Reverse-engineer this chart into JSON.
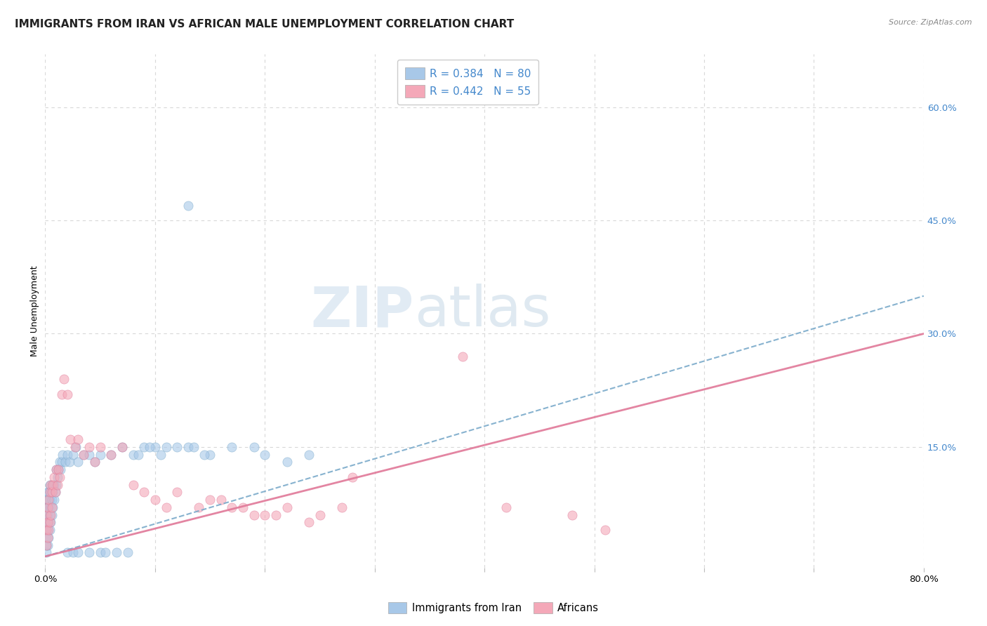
{
  "title": "IMMIGRANTS FROM IRAN VS AFRICAN MALE UNEMPLOYMENT CORRELATION CHART",
  "source": "Source: ZipAtlas.com",
  "ylabel": "Male Unemployment",
  "xlim": [
    0.0,
    0.8
  ],
  "ylim": [
    -0.01,
    0.67
  ],
  "xticks": [
    0.0,
    0.1,
    0.2,
    0.3,
    0.4,
    0.5,
    0.6,
    0.7,
    0.8
  ],
  "xticklabels": [
    "0.0%",
    "",
    "",
    "",
    "",
    "",
    "",
    "",
    "80.0%"
  ],
  "ytick_positions": [
    0.15,
    0.3,
    0.45,
    0.6
  ],
  "ytick_labels": [
    "15.0%",
    "30.0%",
    "45.0%",
    "60.0%"
  ],
  "watermark_zip": "ZIP",
  "watermark_atlas": "atlas",
  "legend_r1": "R = 0.384",
  "legend_n1": "N = 80",
  "legend_r2": "R = 0.442",
  "legend_n2": "N = 55",
  "series1_color": "#a8c8e8",
  "series2_color": "#f4a8b8",
  "series1_edge": "#7aaaca",
  "series2_edge": "#e07898",
  "trendline1_color": "#7aaaca",
  "trendline2_color": "#e07898",
  "background_color": "#ffffff",
  "grid_color": "#d8d8d8",
  "axis_label_color": "#4488cc",
  "stat_color": "#4488cc",
  "title_color": "#222222",
  "series1_x": [
    0.001,
    0.001,
    0.001,
    0.001,
    0.001,
    0.001,
    0.001,
    0.001,
    0.002,
    0.002,
    0.002,
    0.002,
    0.002,
    0.002,
    0.002,
    0.003,
    0.003,
    0.003,
    0.003,
    0.004,
    0.004,
    0.004,
    0.004,
    0.005,
    0.005,
    0.005,
    0.006,
    0.006,
    0.006,
    0.007,
    0.007,
    0.008,
    0.008,
    0.009,
    0.01,
    0.01,
    0.011,
    0.012,
    0.013,
    0.014,
    0.015,
    0.016,
    0.018,
    0.02,
    0.022,
    0.025,
    0.028,
    0.03,
    0.035,
    0.04,
    0.045,
    0.05,
    0.06,
    0.07,
    0.08,
    0.09,
    0.1,
    0.11,
    0.13,
    0.15,
    0.17,
    0.19,
    0.2,
    0.22,
    0.24,
    0.13,
    0.05,
    0.02,
    0.025,
    0.03,
    0.04,
    0.055,
    0.065,
    0.075,
    0.085,
    0.095,
    0.105,
    0.12,
    0.135,
    0.145
  ],
  "series1_y": [
    0.01,
    0.02,
    0.03,
    0.04,
    0.05,
    0.06,
    0.07,
    0.08,
    0.02,
    0.04,
    0.05,
    0.06,
    0.07,
    0.08,
    0.09,
    0.03,
    0.05,
    0.07,
    0.09,
    0.04,
    0.06,
    0.08,
    0.1,
    0.05,
    0.07,
    0.09,
    0.06,
    0.08,
    0.1,
    0.07,
    0.09,
    0.08,
    0.1,
    0.09,
    0.1,
    0.12,
    0.11,
    0.12,
    0.13,
    0.12,
    0.13,
    0.14,
    0.13,
    0.14,
    0.13,
    0.14,
    0.15,
    0.13,
    0.14,
    0.14,
    0.13,
    0.14,
    0.14,
    0.15,
    0.14,
    0.15,
    0.15,
    0.15,
    0.15,
    0.14,
    0.15,
    0.15,
    0.14,
    0.13,
    0.14,
    0.47,
    0.01,
    0.01,
    0.01,
    0.01,
    0.01,
    0.01,
    0.01,
    0.01,
    0.14,
    0.15,
    0.14,
    0.15,
    0.15,
    0.14
  ],
  "series2_x": [
    0.001,
    0.001,
    0.001,
    0.002,
    0.002,
    0.002,
    0.003,
    0.003,
    0.004,
    0.004,
    0.005,
    0.005,
    0.006,
    0.006,
    0.007,
    0.008,
    0.009,
    0.01,
    0.011,
    0.012,
    0.013,
    0.015,
    0.017,
    0.02,
    0.023,
    0.027,
    0.03,
    0.035,
    0.04,
    0.045,
    0.05,
    0.06,
    0.07,
    0.08,
    0.09,
    0.1,
    0.11,
    0.12,
    0.14,
    0.16,
    0.18,
    0.2,
    0.22,
    0.25,
    0.28,
    0.38,
    0.42,
    0.48,
    0.15,
    0.17,
    0.19,
    0.21,
    0.24,
    0.27,
    0.51
  ],
  "series2_y": [
    0.02,
    0.04,
    0.06,
    0.03,
    0.05,
    0.07,
    0.04,
    0.08,
    0.05,
    0.09,
    0.06,
    0.1,
    0.07,
    0.09,
    0.1,
    0.11,
    0.09,
    0.12,
    0.1,
    0.12,
    0.11,
    0.22,
    0.24,
    0.22,
    0.16,
    0.15,
    0.16,
    0.14,
    0.15,
    0.13,
    0.15,
    0.14,
    0.15,
    0.1,
    0.09,
    0.08,
    0.07,
    0.09,
    0.07,
    0.08,
    0.07,
    0.06,
    0.07,
    0.06,
    0.11,
    0.27,
    0.07,
    0.06,
    0.08,
    0.07,
    0.06,
    0.06,
    0.05,
    0.07,
    0.04
  ],
  "trendline1_x": [
    0.0,
    0.8
  ],
  "trendline1_y": [
    0.005,
    0.35
  ],
  "trendline2_x": [
    0.0,
    0.8
  ],
  "trendline2_y": [
    0.005,
    0.3
  ],
  "title_fontsize": 11,
  "axis_label_fontsize": 9,
  "tick_fontsize": 9.5,
  "legend_fontsize": 11
}
